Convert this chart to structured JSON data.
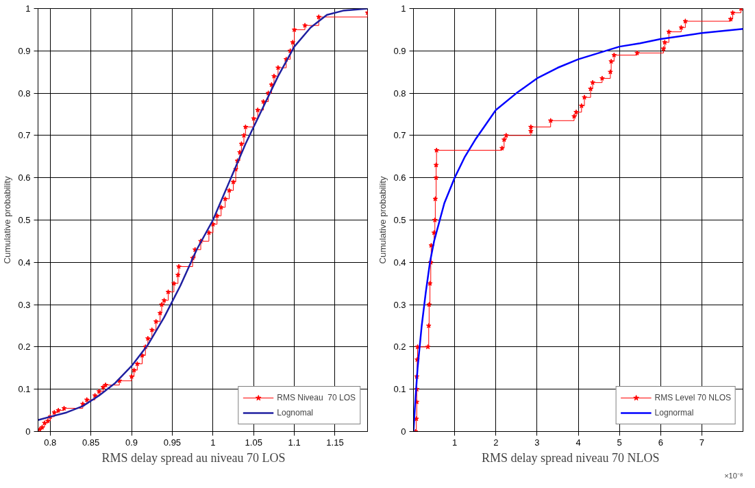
{
  "chart_data": [
    {
      "type": "step",
      "xlabel": "RMS  delay  spread  au  niveau  70  LOS",
      "ylabel": "Cumulative probability",
      "xlim": [
        0.785,
        1.19
      ],
      "xticks": [
        0.8,
        0.85,
        0.9,
        0.95,
        1,
        1.05,
        1.1,
        1.15
      ],
      "ylim": [
        0,
        1
      ],
      "yticks": [
        0,
        0.1,
        0.2,
        0.3,
        0.4,
        0.5,
        0.6,
        0.7,
        0.8,
        0.9,
        1
      ],
      "grid": true,
      "legend": "bottom right",
      "series": [
        {
          "name": "RMS Niveau  70 LOS",
          "marker": "star",
          "color": "#ff0000",
          "x": [
            0.787,
            0.79,
            0.793,
            0.797,
            0.8,
            0.805,
            0.81,
            0.817,
            0.84,
            0.845,
            0.855,
            0.86,
            0.865,
            0.868,
            0.885,
            0.9,
            0.903,
            0.907,
            0.913,
            0.917,
            0.92,
            0.925,
            0.93,
            0.935,
            0.937,
            0.94,
            0.945,
            0.952,
            0.957,
            0.958,
            0.975,
            0.978,
            0.985,
            0.995,
            1.0,
            1.005,
            1.01,
            1.015,
            1.02,
            1.025,
            1.028,
            1.03,
            1.033,
            1.035,
            1.038,
            1.04,
            1.05,
            1.055,
            1.062,
            1.068,
            1.072,
            1.075,
            1.08,
            1.09,
            1.095,
            1.098,
            1.1,
            1.113,
            1.13,
            1.19
          ],
          "values": [
            0.005,
            0.01,
            0.02,
            0.025,
            0.035,
            0.045,
            0.05,
            0.055,
            0.065,
            0.075,
            0.085,
            0.095,
            0.105,
            0.11,
            0.12,
            0.13,
            0.145,
            0.16,
            0.18,
            0.2,
            0.22,
            0.24,
            0.26,
            0.28,
            0.3,
            0.31,
            0.33,
            0.35,
            0.37,
            0.39,
            0.41,
            0.43,
            0.45,
            0.47,
            0.49,
            0.51,
            0.53,
            0.55,
            0.57,
            0.59,
            0.62,
            0.64,
            0.66,
            0.68,
            0.7,
            0.72,
            0.74,
            0.76,
            0.78,
            0.8,
            0.82,
            0.84,
            0.86,
            0.88,
            0.9,
            0.92,
            0.95,
            0.96,
            0.98,
            0.99
          ]
        },
        {
          "name": "Lognomal",
          "type": "line",
          "marker": "none",
          "color": "#1f1fa0",
          "x": [
            0.785,
            0.8,
            0.82,
            0.84,
            0.86,
            0.88,
            0.9,
            0.92,
            0.94,
            0.96,
            0.98,
            1.0,
            1.02,
            1.04,
            1.06,
            1.08,
            1.1,
            1.12,
            1.14,
            1.16,
            1.19
          ],
          "values": [
            0.027,
            0.035,
            0.045,
            0.06,
            0.085,
            0.115,
            0.155,
            0.205,
            0.27,
            0.345,
            0.43,
            0.5,
            0.59,
            0.68,
            0.76,
            0.84,
            0.91,
            0.955,
            0.985,
            0.995,
            1.0
          ]
        }
      ]
    },
    {
      "type": "step",
      "xlabel": "RMS  delay  spread  niveau  70  NLOS",
      "ylabel": "Cumulative probability",
      "annotations": [
        "×10⁻⁸"
      ],
      "xlim": [
        0,
        8
      ],
      "xticks": [
        1,
        2,
        3,
        4,
        5,
        6,
        7
      ],
      "ylim": [
        0,
        1
      ],
      "yticks": [
        0,
        0.1,
        0.2,
        0.3,
        0.4,
        0.5,
        0.6,
        0.7,
        0.8,
        0.9,
        1
      ],
      "grid": true,
      "legend": "bottom right",
      "series": [
        {
          "name": "RMS Level 70 NLOS",
          "marker": "star",
          "color": "#ff0000",
          "x": [
            0.05,
            0.07,
            0.08,
            0.08,
            0.08,
            0.09,
            0.1,
            0.35,
            0.37,
            0.38,
            0.4,
            0.42,
            0.43,
            0.5,
            0.52,
            0.53,
            0.55,
            0.55,
            0.56,
            2.15,
            2.2,
            2.25,
            2.85,
            2.85,
            3.33,
            3.9,
            3.95,
            4.08,
            4.15,
            4.3,
            4.35,
            4.58,
            4.78,
            4.8,
            4.87,
            5.43,
            6.07,
            6.1,
            6.2,
            6.5,
            6.6,
            7.7,
            7.75,
            7.95
          ],
          "values": [
            0,
            0.03,
            0.07,
            0.1,
            0.13,
            0.17,
            0.2,
            0.2,
            0.25,
            0.3,
            0.35,
            0.4,
            0.44,
            0.47,
            0.5,
            0.55,
            0.6,
            0.63,
            0.665,
            0.67,
            0.69,
            0.7,
            0.71,
            0.72,
            0.735,
            0.745,
            0.755,
            0.77,
            0.79,
            0.81,
            0.825,
            0.835,
            0.85,
            0.875,
            0.89,
            0.895,
            0.905,
            0.92,
            0.945,
            0.955,
            0.97,
            0.975,
            0.99,
            1.0
          ]
        },
        {
          "name": "Lognormal",
          "type": "line",
          "marker": "none",
          "color": "#0000ff",
          "x": [
            0,
            0.05,
            0.1,
            0.2,
            0.3,
            0.4,
            0.5,
            0.75,
            1.0,
            1.25,
            1.5,
            2.0,
            2.5,
            3.0,
            3.5,
            4.0,
            4.5,
            5.0,
            5.5,
            6.0,
            6.5,
            7.0,
            7.5,
            8.0
          ],
          "values": [
            0,
            0.08,
            0.15,
            0.25,
            0.33,
            0.4,
            0.45,
            0.54,
            0.6,
            0.65,
            0.69,
            0.76,
            0.8,
            0.835,
            0.86,
            0.88,
            0.895,
            0.91,
            0.918,
            0.928,
            0.935,
            0.942,
            0.947,
            0.952
          ]
        }
      ]
    }
  ]
}
